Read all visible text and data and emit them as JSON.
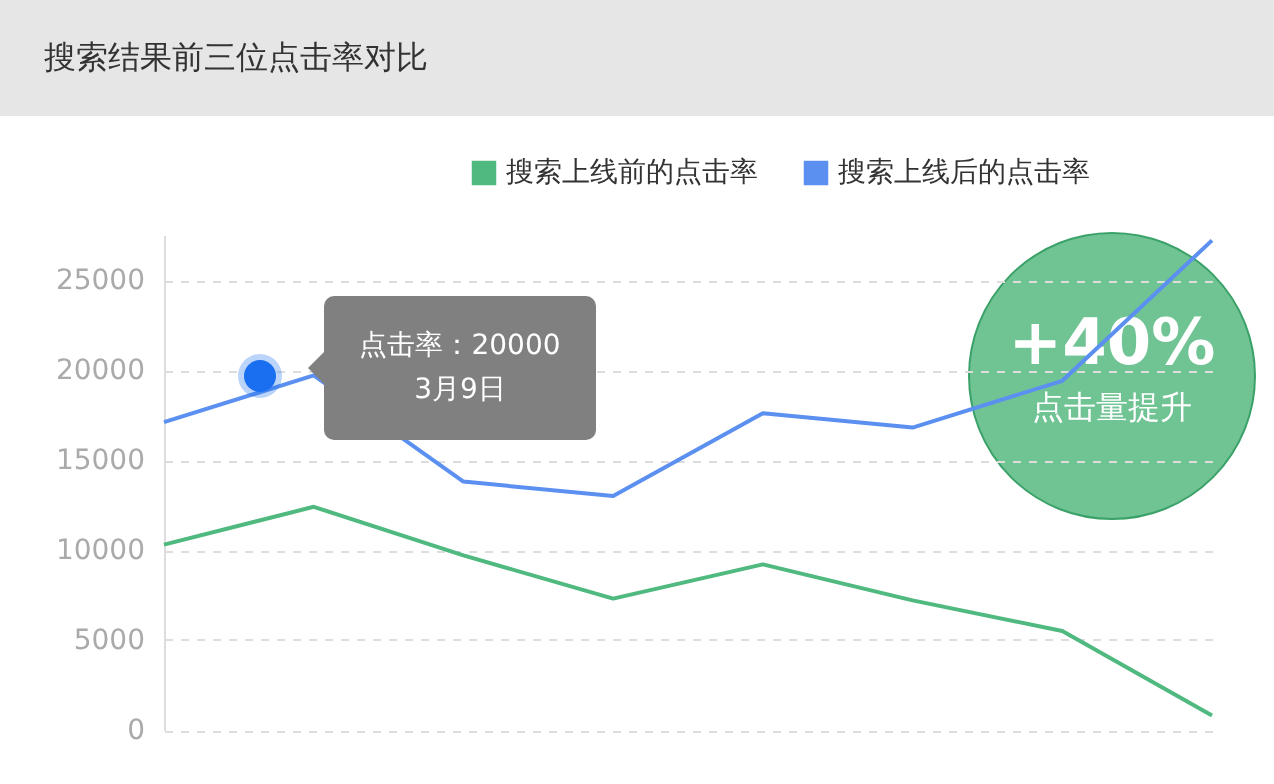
{
  "chart_data": {
    "type": "line",
    "title": "搜索结果前三位点击率对比",
    "categories": [
      null,
      null,
      null,
      null,
      null,
      null,
      null,
      null
    ],
    "series": [
      {
        "name": "搜索上线前的点击率",
        "color": "#4fb97f",
        "values": [
          10300,
          12400,
          9700,
          7300,
          9200,
          7200,
          5500,
          800
        ]
      },
      {
        "name": "搜索上线后的点击率",
        "color": "#5b8ff0",
        "values": [
          17100,
          19700,
          13800,
          13000,
          17600,
          16800,
          19400,
          27200
        ]
      }
    ],
    "ylim": [
      0,
      27500
    ],
    "yticks": [
      0,
      5000,
      10000,
      15000,
      20000,
      25000
    ],
    "grid": "y",
    "legend": "top right",
    "tick_labels": "y",
    "line_style": "solid",
    "annotations": [
      "点击率：20000",
      "3月9日",
      "+40%",
      "点击量提升"
    ]
  }
}
